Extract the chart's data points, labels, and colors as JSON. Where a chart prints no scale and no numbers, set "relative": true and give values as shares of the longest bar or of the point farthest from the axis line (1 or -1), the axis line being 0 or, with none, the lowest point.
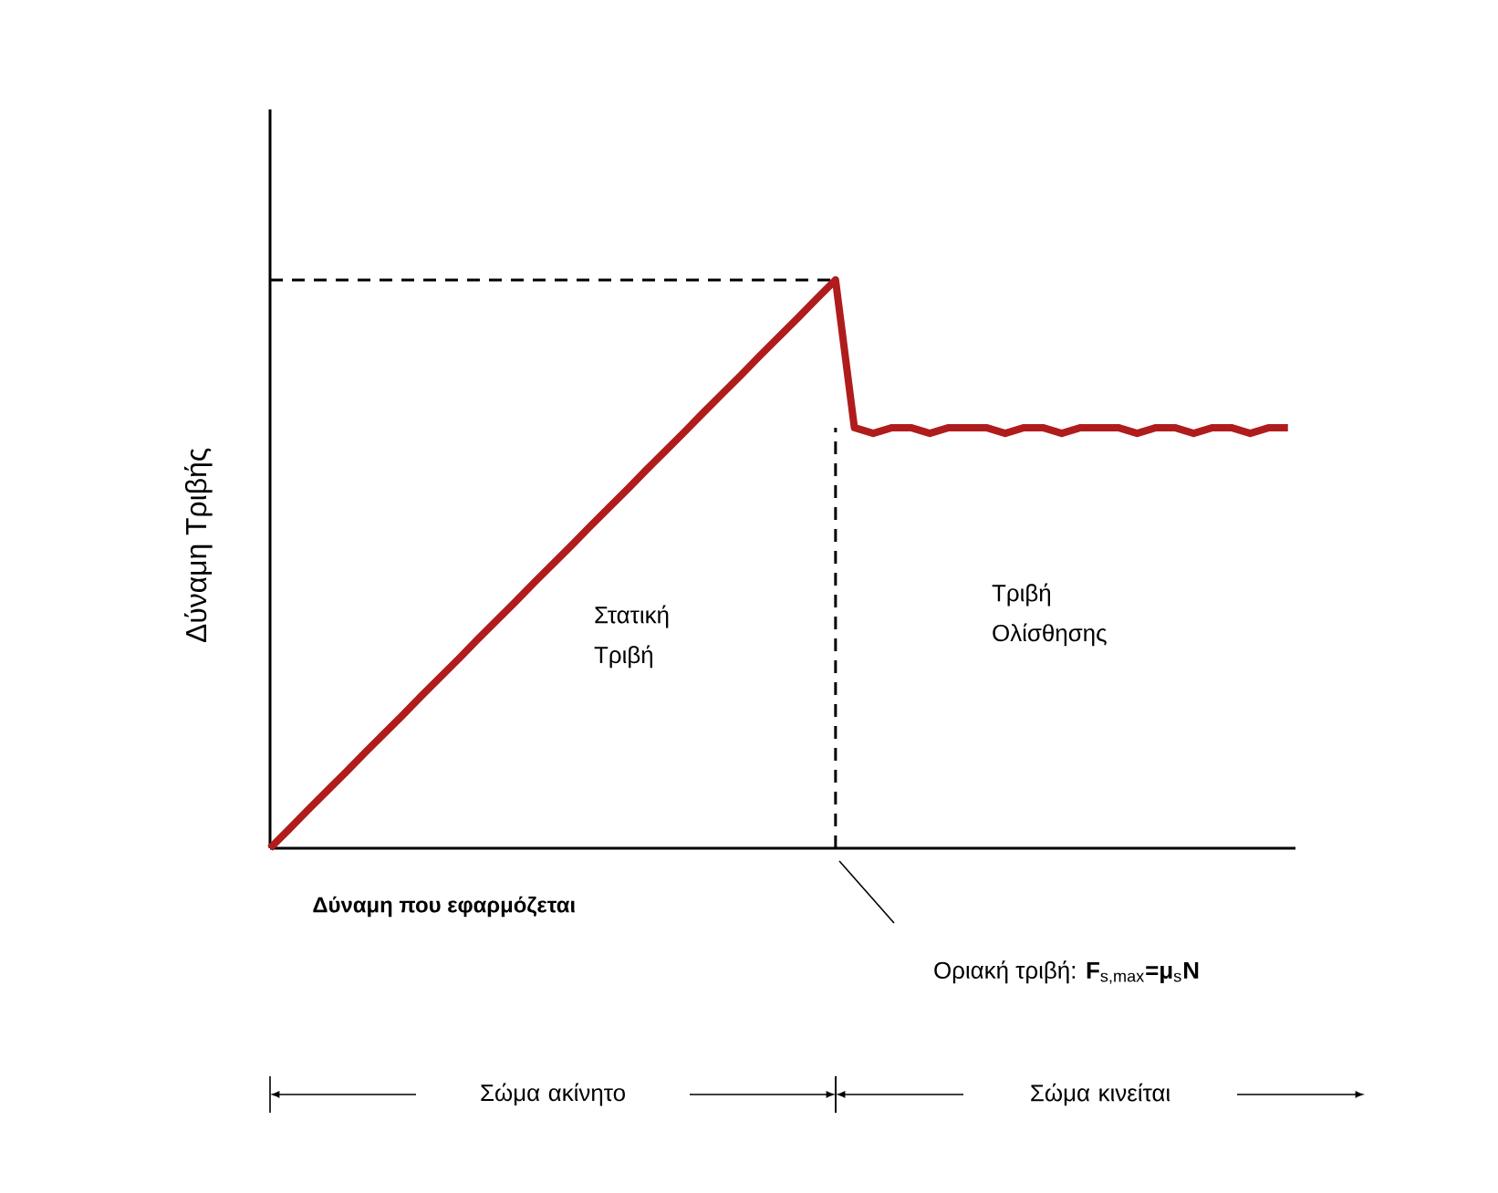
{
  "chart_data": {
    "type": "line",
    "relative": true,
    "xlabel": "Δύναμη που εφαρμόζεται",
    "ylabel": "Δύναμη Τριβής",
    "categories": [
      null,
      null,
      null,
      null,
      null,
      null,
      null,
      null,
      null,
      null,
      null,
      null,
      null,
      null,
      null,
      null,
      null,
      null,
      null,
      null,
      null,
      null,
      null,
      null,
      null,
      null,
      null,
      null,
      null,
      null,
      null,
      null,
      null,
      null,
      null,
      null,
      null,
      null,
      null,
      null,
      null,
      null,
      null,
      null,
      null,
      null,
      null,
      null,
      null,
      null,
      null,
      null,
      null,
      null,
      null
    ],
    "series": [
      {
        "color": "#b01c1c",
        "values": [
          0,
          0.033,
          0.067,
          0.1,
          0.133,
          0.167,
          0.2,
          0.233,
          0.267,
          0.3,
          0.333,
          0.367,
          0.4,
          0.433,
          0.467,
          0.5,
          0.533,
          0.567,
          0.6,
          0.633,
          0.667,
          0.7,
          0.733,
          0.767,
          0.8,
          0.833,
          0.867,
          0.9,
          0.933,
          0.967,
          1,
          0.74,
          0.73,
          0.74,
          0.74,
          0.73,
          0.74,
          0.74,
          0.74,
          0.73,
          0.74,
          0.74,
          0.73,
          0.74,
          0.74,
          0.74,
          0.73,
          0.74,
          0.74,
          0.73,
          0.74,
          0.74,
          0.73,
          0.74,
          0.74
        ]
      }
    ],
    "ref_lines": [
      {
        "axis": "y",
        "value": 1,
        "line_style": "dashed"
      }
    ],
    "annotations": [
      "Στατική Τριβή",
      "Τριβή Ολίσθησης",
      "Οριακή τριβή: **F**$_{s,max}$**=μ**$_{s}$**N**",
      "Σώμα ακίνητο",
      "Σώμα κινείται"
    ]
  }
}
